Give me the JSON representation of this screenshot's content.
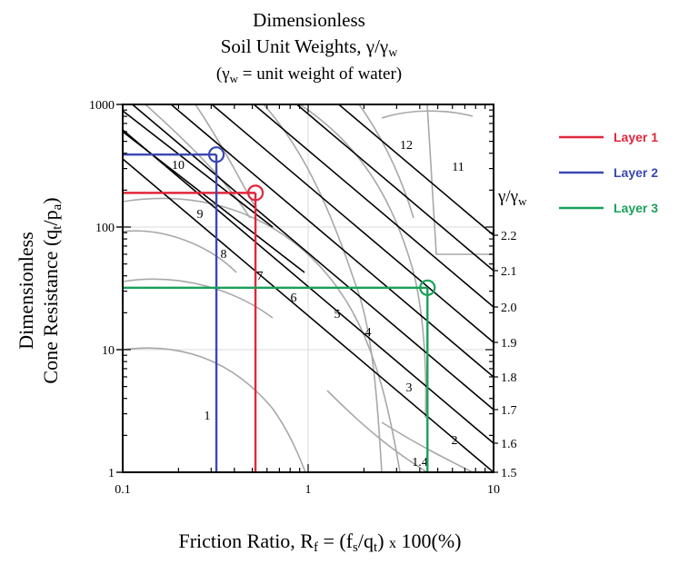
{
  "chart_data": {
    "type": "line",
    "title": [
      "Dimensionless",
      "Soil Unit Weights, γ/γ",
      "(γ",
      " = unit weight of water)"
    ],
    "title_sub": "w",
    "ylabel": [
      "Dimensionless",
      "Cone Resistance (q",
      "/p",
      ")"
    ],
    "ylabel_subs": [
      "t",
      "a"
    ],
    "xlabel": [
      "Friction Ratio, R",
      " = (f",
      "/q",
      ") ",
      "x",
      " 100(%)"
    ],
    "xlabel_subs": [
      "f",
      "s",
      "t"
    ],
    "x_scale": "log",
    "y_scale": "log",
    "xlim": [
      0.1,
      10
    ],
    "ylim": [
      1,
      1000
    ],
    "x_ticks": [
      "0.1",
      "1",
      "10"
    ],
    "y_ticks": [
      "1",
      "10",
      "100",
      "1000"
    ],
    "right_axis": {
      "label": "γ/γ",
      "label_sub": "w",
      "ticks": [
        "2.2",
        "2.1",
        "2.0",
        "1.9",
        "1.8",
        "1.7",
        "1.6",
        "1.5"
      ]
    },
    "zone_labels": [
      "1",
      "2",
      "3",
      "4",
      "5",
      "6",
      "7",
      "8",
      "9",
      "10",
      "11",
      "12",
      "1.4"
    ],
    "series": [
      {
        "name": "Layer 1",
        "color": "#e0263c",
        "friction_ratio": 0.52,
        "cone_resistance": 190
      },
      {
        "name": "Layer 2",
        "color": "#3a48b0",
        "friction_ratio": 0.32,
        "cone_resistance": 390
      },
      {
        "name": "Layer 3",
        "color": "#1aa05a",
        "friction_ratio": 4.4,
        "cone_resistance": 32
      }
    ]
  }
}
